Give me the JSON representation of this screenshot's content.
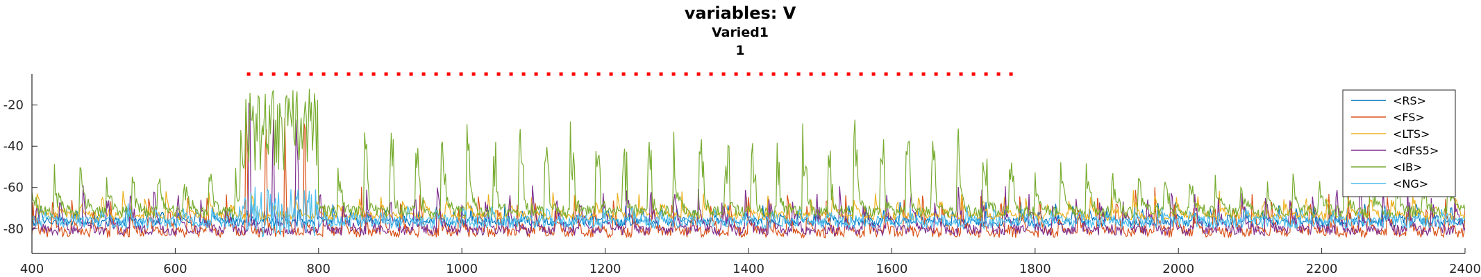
{
  "chart_data": {
    "type": "line",
    "title": "variables: V",
    "subtitle_1": "Varied1",
    "subtitle_2": "1",
    "xlabel": "",
    "ylabel": "",
    "xlim": [
      400,
      2400
    ],
    "ylim": [
      -92,
      -5
    ],
    "x_ticks": [
      400,
      600,
      800,
      1000,
      1200,
      1400,
      1600,
      1800,
      2000,
      2200,
      2400
    ],
    "y_ticks": [
      -20,
      -40,
      -60,
      -80
    ],
    "legend_position": "top-right",
    "marker_line": {
      "color": "#ff0000",
      "y": -5,
      "x_start": 700,
      "x_end": 1780,
      "style": "dotted"
    },
    "series": [
      {
        "name": "<RS>",
        "color": "#0072bd",
        "baseline": -77,
        "spike_amp": 8,
        "noise": 2.0
      },
      {
        "name": "<FS>",
        "color": "#d95319",
        "baseline": -82,
        "spike_amp": 18,
        "noise": 2.5
      },
      {
        "name": "<LTS>",
        "color": "#edb120",
        "baseline": -74,
        "spike_amp": 10,
        "noise": 2.0
      },
      {
        "name": "<dFS5>",
        "color": "#7e2f8e",
        "baseline": -81,
        "spike_amp": 20,
        "noise": 2.5
      },
      {
        "name": "<IB>",
        "color": "#77ac30",
        "baseline": -72,
        "spike_amp": 22,
        "noise": 3.0
      },
      {
        "name": "<NG>",
        "color": "#4dbeee",
        "baseline": -77,
        "spike_amp": 6,
        "noise": 3.0
      }
    ]
  }
}
